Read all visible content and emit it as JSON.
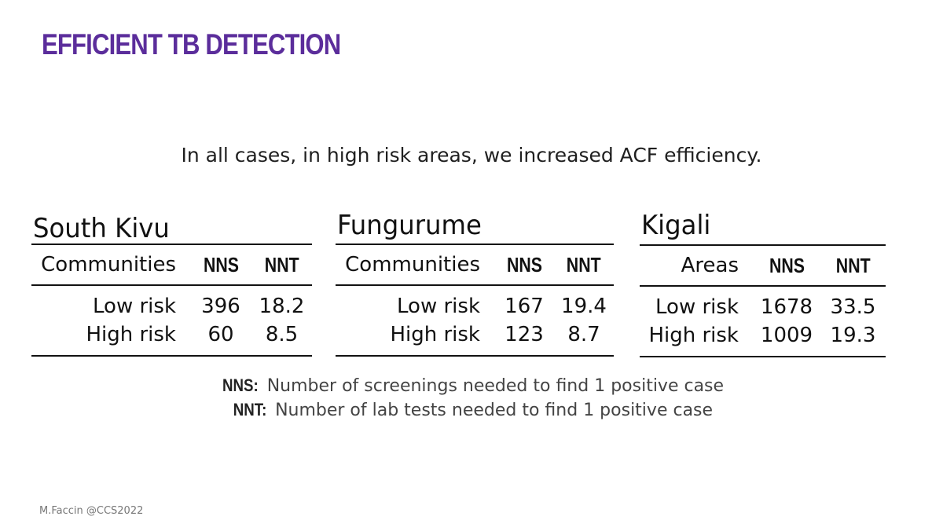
{
  "slide": {
    "title": "EFFICIENT TB DETECTION",
    "subtitle": "In all cases, in high risk areas, we increased ACF efficiency.",
    "footer": "M.Faccin @CCS2022",
    "title_color": "#5b2d9b"
  },
  "sites": [
    {
      "name": "South Kivu",
      "header": {
        "label": "Communities",
        "nns": "NNS",
        "nnt": "NNT"
      },
      "rows": [
        {
          "label": "Low risk",
          "nns": "396",
          "nnt": "18.2"
        },
        {
          "label": "High risk",
          "nns": "60",
          "nnt": "8.5"
        }
      ]
    },
    {
      "name": "Fungurume",
      "header": {
        "label": "Communities",
        "nns": "NNS",
        "nnt": "NNT"
      },
      "rows": [
        {
          "label": "Low risk",
          "nns": "167",
          "nnt": "19.4"
        },
        {
          "label": "High risk",
          "nns": "123",
          "nnt": "8.7"
        }
      ]
    },
    {
      "name": "Kigali",
      "header": {
        "label": "Areas",
        "nns": "NNS",
        "nnt": "NNT"
      },
      "rows": [
        {
          "label": "Low risk",
          "nns": "1678",
          "nnt": "33.5"
        },
        {
          "label": "High risk",
          "nns": "1009",
          "nnt": "19.3"
        }
      ]
    }
  ],
  "legend": [
    {
      "abbr": "NNS:",
      "text": "Number of screenings needed to find 1 positive case"
    },
    {
      "abbr": "NNT:",
      "text": "Number of lab tests needed to find 1 positive case"
    }
  ]
}
